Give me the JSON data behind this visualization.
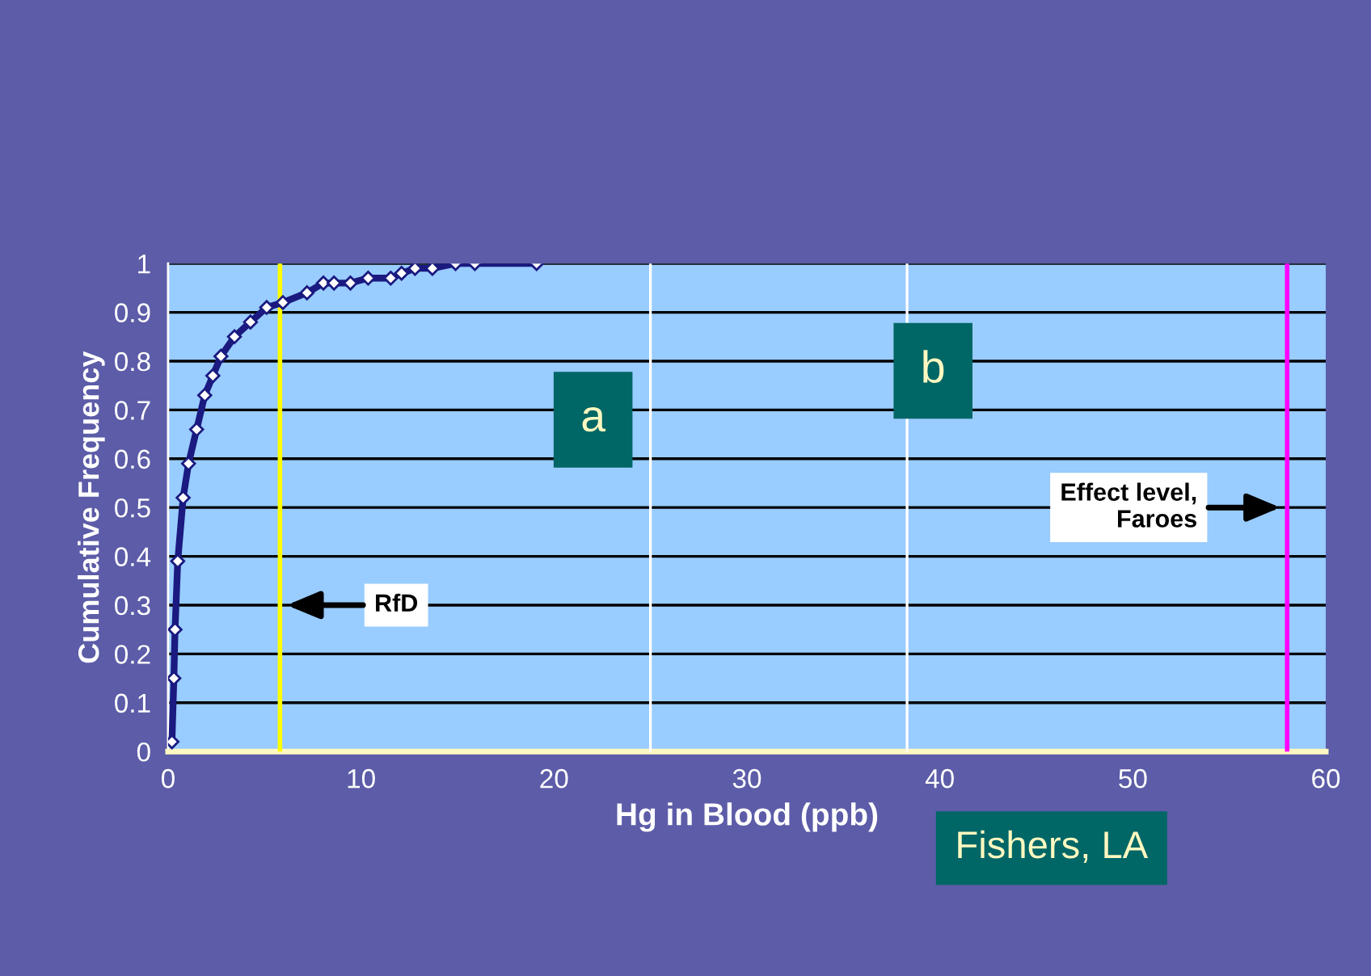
{
  "chart_data": {
    "type": "line",
    "xlabel": "Hg in Blood (ppb)",
    "ylabel": "Cumulative Frequency",
    "x": [
      0.2,
      0.3,
      0.36,
      0.5,
      0.78,
      1.06,
      1.48,
      1.9,
      2.32,
      2.74,
      3.44,
      4.27,
      5.11,
      5.95,
      7.2,
      8.05,
      8.6,
      9.45,
      10.37,
      11.54,
      12.1,
      12.8,
      13.7,
      14.9,
      15.9,
      19.1
    ],
    "series": [
      {
        "color": "#1a1a80",
        "values": [
          0.02,
          0.15,
          0.25,
          0.39,
          0.52,
          0.59,
          0.66,
          0.73,
          0.77,
          0.81,
          0.85,
          0.88,
          0.91,
          0.92,
          0.94,
          0.96,
          0.96,
          0.96,
          0.97,
          0.97,
          0.98,
          0.99,
          0.99,
          1.0,
          1.0,
          1.0
        ]
      }
    ],
    "marker": "diamond",
    "xlim": [
      0,
      60
    ],
    "xticks": [
      0,
      10,
      20,
      30,
      40,
      50,
      60
    ],
    "ylim": [
      0,
      1
    ],
    "yticks": [
      0,
      0.1,
      0.2,
      0.3,
      0.4,
      0.5,
      0.6,
      0.7,
      0.8,
      0.9,
      1
    ],
    "grid": "y",
    "legend": false,
    "ref_lines": [
      {
        "axis": "x",
        "value": 5.8,
        "label": "RfD",
        "color": "#ffff00"
      },
      {
        "axis": "x",
        "value": 25,
        "label": "a",
        "color": "#ffffff"
      },
      {
        "axis": "x",
        "value": 38.3,
        "label": "b",
        "color": "#ffffff"
      },
      {
        "axis": "x",
        "value": 58,
        "label": "Effect level,\nFaroes",
        "color": "#ff00ff"
      }
    ],
    "annotations": [
      "Fishers, LA"
    ]
  }
}
